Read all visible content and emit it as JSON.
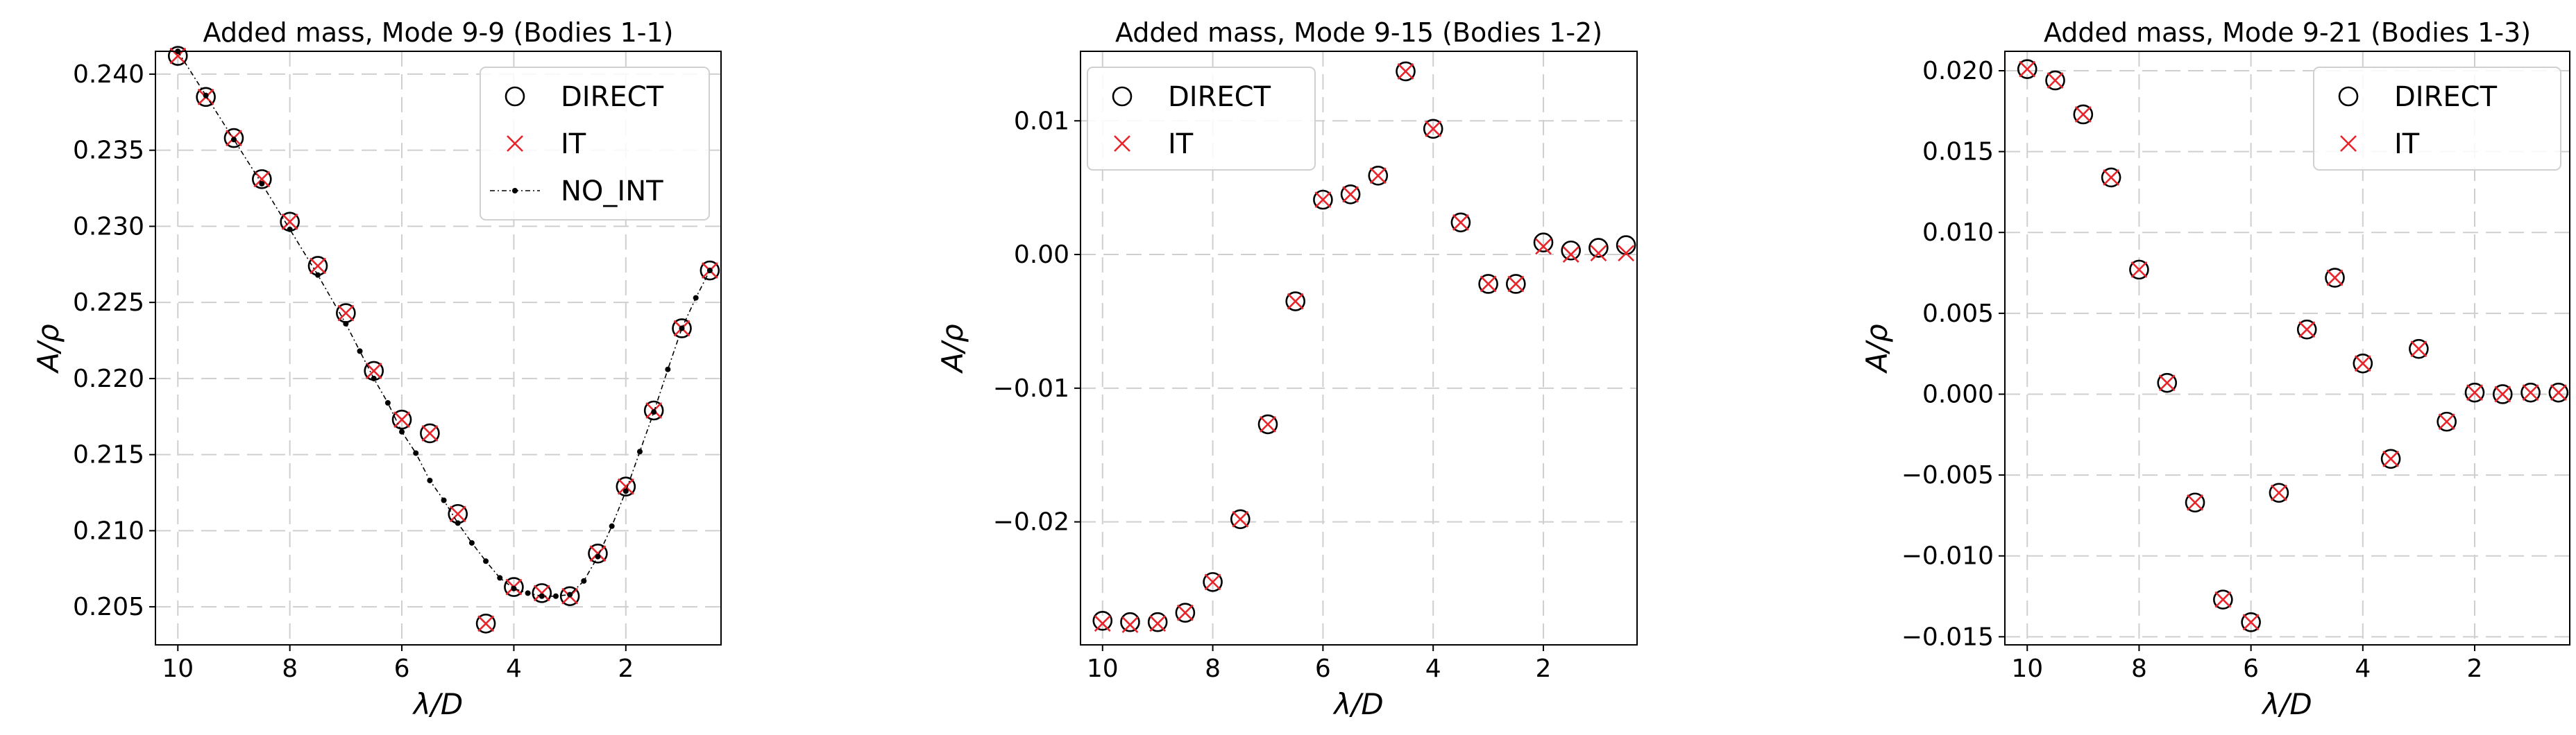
{
  "chart_data": [
    {
      "type": "scatter",
      "title": "Added mass, Mode 9-9 (Bodies 1-1)",
      "xlabel": "λ/D",
      "ylabel": "A/ρ",
      "xlim": [
        10.4,
        0.3
      ],
      "ylim": [
        0.2025,
        0.2415
      ],
      "x_reversed": true,
      "xticks": [
        10,
        8,
        6,
        4,
        2
      ],
      "xtick_labels": [
        "10",
        "8",
        "6",
        "4",
        "2"
      ],
      "yticks": [
        0.205,
        0.21,
        0.215,
        0.22,
        0.225,
        0.23,
        0.235,
        0.24
      ],
      "ytick_labels": [
        "0.205",
        "0.210",
        "0.215",
        "0.220",
        "0.225",
        "0.230",
        "0.235",
        "0.240"
      ],
      "grid": true,
      "legend_position": "top-right",
      "series": [
        {
          "name": "DIRECT",
          "marker": "circle",
          "color": "#000000",
          "x": [
            10,
            9.5,
            9,
            8.5,
            8,
            7.5,
            7,
            6.5,
            6,
            5.5,
            5,
            4.5,
            4,
            3.5,
            3,
            2.5,
            2,
            1.5,
            1,
            0.5
          ],
          "y": [
            0.2412,
            0.2385,
            0.2358,
            0.2331,
            0.2303,
            0.2274,
            0.2243,
            0.2205,
            0.2173,
            0.2164,
            0.2111,
            0.2039,
            0.2063,
            0.2059,
            0.2057,
            0.2085,
            0.2129,
            0.2179,
            0.2233,
            0.2271
          ]
        },
        {
          "name": "IT",
          "marker": "x",
          "color": "#e8242a",
          "x": [
            10,
            9.5,
            9,
            8.5,
            8,
            7.5,
            7,
            6.5,
            6,
            5.5,
            5,
            4.5,
            4,
            3.5,
            3,
            2.5,
            2,
            1.5,
            1,
            0.5
          ],
          "y": [
            0.2412,
            0.2385,
            0.2358,
            0.2331,
            0.2303,
            0.2274,
            0.2243,
            0.2205,
            0.2173,
            0.2164,
            0.2111,
            0.2039,
            0.2063,
            0.2059,
            0.2057,
            0.2085,
            0.2129,
            0.2179,
            0.2233,
            0.2271
          ]
        },
        {
          "name": "NO_INT",
          "marker": "dot-dashed-line",
          "color": "#000000",
          "x": [
            10,
            9.5,
            9,
            8.5,
            8,
            7.5,
            7,
            6.75,
            6.5,
            6.25,
            6,
            5.75,
            5.5,
            5.25,
            5,
            4.75,
            4.5,
            4.25,
            4,
            3.75,
            3.5,
            3.25,
            3,
            2.75,
            2.5,
            2.25,
            2,
            1.75,
            1.5,
            1.25,
            1,
            0.75,
            0.5
          ],
          "y": [
            0.2415,
            0.2386,
            0.2357,
            0.2328,
            0.2298,
            0.2268,
            0.2236,
            0.2218,
            0.22,
            0.2184,
            0.2165,
            0.2151,
            0.2133,
            0.212,
            0.2105,
            0.2092,
            0.208,
            0.2069,
            0.2062,
            0.2059,
            0.2057,
            0.2057,
            0.2058,
            0.2067,
            0.2083,
            0.2103,
            0.2126,
            0.2152,
            0.2178,
            0.2206,
            0.2233,
            0.2253,
            0.2271
          ]
        }
      ]
    },
    {
      "type": "scatter",
      "title": "Added mass, Mode 9-15 (Bodies 1-2)",
      "xlabel": "λ/D",
      "ylabel": "A/ρ",
      "xlim": [
        10.4,
        0.3
      ],
      "ylim": [
        -0.0292,
        0.0152
      ],
      "x_reversed": true,
      "xticks": [
        10,
        8,
        6,
        4,
        2
      ],
      "xtick_labels": [
        "10",
        "8",
        "6",
        "4",
        "2"
      ],
      "yticks": [
        -0.02,
        -0.01,
        0.0,
        0.01
      ],
      "ytick_labels": [
        "−0.02",
        "−0.01",
        "0.00",
        "0.01"
      ],
      "grid": true,
      "legend_position": "top-left",
      "series": [
        {
          "name": "DIRECT",
          "marker": "circle",
          "color": "#000000",
          "x": [
            10,
            9.5,
            9,
            8.5,
            8,
            7.5,
            7,
            6.5,
            6,
            5.5,
            5,
            4.5,
            4,
            3.5,
            3,
            2.5,
            2,
            1.5,
            1,
            0.5
          ],
          "y": [
            -0.0274,
            -0.0275,
            -0.0275,
            -0.0268,
            -0.0245,
            -0.0198,
            -0.0127,
            -0.0035,
            0.0041,
            0.0045,
            0.0059,
            0.0137,
            0.0094,
            0.0024,
            -0.0022,
            -0.0022,
            0.0009,
            0.0003,
            0.0005,
            0.0007
          ]
        },
        {
          "name": "IT",
          "marker": "x",
          "color": "#e8242a",
          "x": [
            10,
            9.5,
            9,
            8.5,
            8,
            7.5,
            7,
            6.5,
            6,
            5.5,
            5,
            4.5,
            4,
            3.5,
            3,
            2.5,
            2,
            1.5,
            1,
            0.5
          ],
          "y": [
            -0.0276,
            -0.0277,
            -0.0276,
            -0.0268,
            -0.0245,
            -0.0198,
            -0.0127,
            -0.0035,
            0.0041,
            0.0045,
            0.0059,
            0.0137,
            0.0094,
            0.0024,
            -0.0022,
            -0.0022,
            0.0006,
            0.0,
            0.0001,
            0.0001
          ]
        }
      ]
    },
    {
      "type": "scatter",
      "title": "Added mass, Mode 9-21 (Bodies 1-3)",
      "xlabel": "λ/D",
      "ylabel": "A/ρ",
      "xlim": [
        10.4,
        0.3
      ],
      "ylim": [
        -0.0155,
        0.0212
      ],
      "x_reversed": true,
      "xticks": [
        10,
        8,
        6,
        4,
        2
      ],
      "xtick_labels": [
        "10",
        "8",
        "6",
        "4",
        "2"
      ],
      "yticks": [
        -0.015,
        -0.01,
        -0.005,
        0.0,
        0.005,
        0.01,
        0.015,
        0.02
      ],
      "ytick_labels": [
        "−0.015",
        "−0.010",
        "−0.005",
        "0.000",
        "0.005",
        "0.010",
        "0.015",
        "0.020"
      ],
      "grid": true,
      "legend_position": "top-right",
      "series": [
        {
          "name": "DIRECT",
          "marker": "circle",
          "color": "#000000",
          "x": [
            10,
            9.5,
            9,
            8.5,
            8,
            7.5,
            7,
            6.5,
            6,
            5.5,
            5,
            4.5,
            4,
            3.5,
            3,
            2.5,
            2,
            1.5,
            1,
            0.5
          ],
          "y": [
            0.0201,
            0.0194,
            0.0173,
            0.0134,
            0.0077,
            0.0007,
            -0.0067,
            -0.0127,
            -0.0141,
            -0.0061,
            0.004,
            0.0072,
            0.0019,
            -0.004,
            0.0028,
            -0.0017,
            0.0001,
            0.0,
            0.0001,
            0.0001
          ]
        },
        {
          "name": "IT",
          "marker": "x",
          "color": "#e8242a",
          "x": [
            10,
            9.5,
            9,
            8.5,
            8,
            7.5,
            7,
            6.5,
            6,
            5.5,
            5,
            4.5,
            4,
            3.5,
            3,
            2.5,
            2,
            1.5,
            1,
            0.5
          ],
          "y": [
            0.0201,
            0.0194,
            0.0173,
            0.0134,
            0.0077,
            0.0007,
            -0.0067,
            -0.0127,
            -0.0141,
            -0.0061,
            0.004,
            0.0072,
            0.0019,
            -0.004,
            0.0028,
            -0.0017,
            0.0001,
            0.0,
            0.0001,
            0.0001
          ]
        }
      ]
    }
  ]
}
